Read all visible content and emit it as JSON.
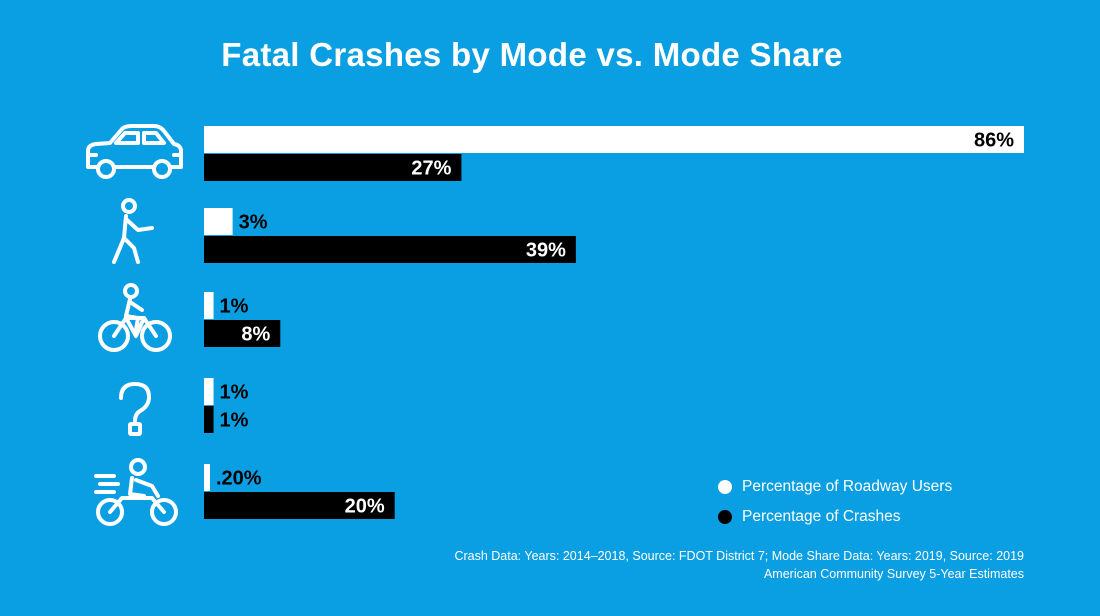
{
  "chart_data": {
    "type": "bar",
    "orientation": "horizontal",
    "title": "Fatal Crashes by Mode vs. Mode Share",
    "categories": [
      "car",
      "pedestrian",
      "bicycle",
      "unknown",
      "motorcycle"
    ],
    "series": [
      {
        "name": "Percentage of Roadway Users",
        "color": "#ffffff",
        "values": [
          86,
          3,
          1,
          1,
          0.2
        ],
        "labels": [
          "86%",
          "3%",
          "1%",
          "1%",
          ".20%"
        ]
      },
      {
        "name": "Percentage of Crashes",
        "color": "#000000",
        "values": [
          27,
          39,
          8,
          1,
          20
        ],
        "labels": [
          "27%",
          "39%",
          "8%",
          "1%",
          "20%"
        ]
      }
    ],
    "xlim": [
      0,
      86
    ],
    "grid": false,
    "legend": "bottom-right"
  },
  "icons": [
    "car-icon",
    "pedestrian-icon",
    "bicycle-icon",
    "question-mark-icon",
    "motorcycle-icon"
  ],
  "legend": {
    "items": [
      {
        "label": "Percentage of Roadway Users",
        "color": "#ffffff"
      },
      {
        "label": "Percentage of Crashes",
        "color": "#000000"
      }
    ]
  },
  "source": {
    "line1": "Crash Data: Years: 2014–2018, Source: FDOT District 7; Mode Share Data: Years: 2019, Source: 2019",
    "line2": "American Community Survey 5-Year Estimates"
  },
  "colors": {
    "background": "#0a9fe2"
  }
}
